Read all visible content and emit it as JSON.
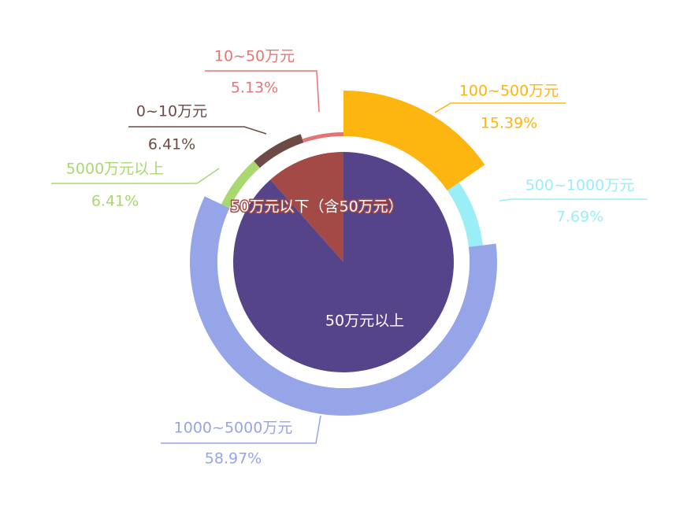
{
  "chart_data": {
    "type": "pie",
    "inner": {
      "slices": [
        {
          "label": "50万元以下（含50万元）",
          "value": 11.54,
          "color": "#a34a46"
        },
        {
          "label": "50万元以上",
          "value": 88.46,
          "color": "#55448a"
        }
      ]
    },
    "outer": {
      "slices": [
        {
          "label": "100~500万元",
          "value": 15.39,
          "pct": "15.39%",
          "color": "#fdb50f"
        },
        {
          "label": "500~1000万元",
          "value": 7.69,
          "pct": "7.69%",
          "color": "#9aeef6"
        },
        {
          "label": "1000~5000万元",
          "value": 58.97,
          "pct": "58.97%",
          "color": "#95a5e8"
        },
        {
          "label": "5000万元以上",
          "value": 6.41,
          "pct": "6.41%",
          "color": "#a8d86f"
        },
        {
          "label": "0~10万元",
          "value": 6.41,
          "pct": "6.41%",
          "color": "#6e4a46"
        },
        {
          "label": "10~50万元",
          "value": 5.13,
          "pct": "5.13%",
          "color": "#e57575"
        }
      ]
    }
  }
}
